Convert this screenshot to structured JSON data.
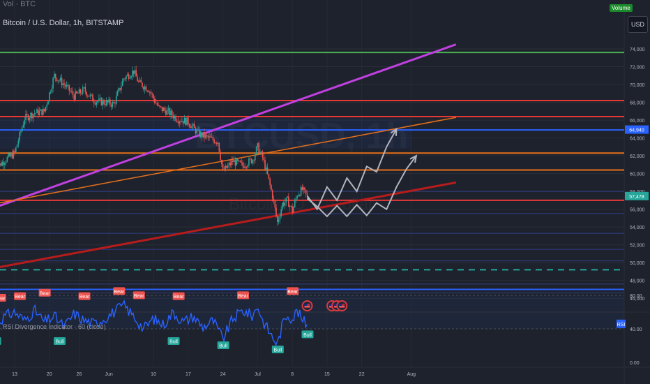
{
  "header": {
    "volume_title": "Vol · BTC",
    "main_title": "Bitcoin / U.S. Dollar, 1h, BITSTAMP",
    "volume_badge": "Volume",
    "currency": "USD"
  },
  "rsi_panel": {
    "title": "RSI Divergence Indicator · 60 (close)",
    "badge": "RSI",
    "ticks": [
      "80.00",
      "40.00",
      "0.00"
    ]
  },
  "colors": {
    "background": "#1e222d",
    "grid": "#2a2e39",
    "candle_up": "#26a69a",
    "candle_down": "#ef5350",
    "rsi_line": "#2962ff",
    "resistance_red": "#e53935",
    "support_blue": "#2962ff",
    "trend_purple": "#c040e0",
    "trend_orange": "#e8701a",
    "trend_darkred": "#b71c1c",
    "level_green": "#4caf50",
    "dashed_teal": "#26a69a",
    "projection": "#b2b5be"
  },
  "chart_data": {
    "type": "candlestick",
    "symbol": "Bitcoin / U.S. Dollar, 1h, BITSTAMP",
    "x_tick_labels": [
      "13",
      "20",
      "26",
      "Jun",
      "10",
      "17",
      "24",
      "Jul",
      "8",
      "15",
      "22",
      "Aug"
    ],
    "y_tick_labels": [
      "46,000",
      "48,000",
      "50,000",
      "52,000",
      "54,000",
      "56,000",
      "58,000",
      "60,000",
      "62,000",
      "64,000",
      "66,000",
      "68,000",
      "70,000",
      "72,000",
      "74,000"
    ],
    "ylim": [
      45000,
      75500
    ],
    "price_labels": [
      {
        "value": 64940,
        "text": "64,940",
        "color": "#2962ff"
      },
      {
        "value": 57478,
        "text": "57,478",
        "color": "#26a69a"
      }
    ],
    "price_series": [
      [
        "May 9",
        60500
      ],
      [
        "May 11",
        61500
      ],
      [
        "May 13",
        62300
      ],
      [
        "May 15",
        66200
      ],
      [
        "May 17",
        66800
      ],
      [
        "May 19",
        67000
      ],
      [
        "May 21",
        71000
      ],
      [
        "May 23",
        70000
      ],
      [
        "May 25",
        68700
      ],
      [
        "May 27",
        69400
      ],
      [
        "May 29",
        68200
      ],
      [
        "May 31",
        68000
      ],
      [
        "Jun 2",
        67800
      ],
      [
        "Jun 4",
        70700
      ],
      [
        "Jun 6",
        71500
      ],
      [
        "Jun 7",
        70200
      ],
      [
        "Jun 9",
        69500
      ],
      [
        "Jun 11",
        67400
      ],
      [
        "Jun 13",
        66900
      ],
      [
        "Jun 15",
        66100
      ],
      [
        "Jun 17",
        65800
      ],
      [
        "Jun 19",
        64500
      ],
      [
        "Jun 21",
        64000
      ],
      [
        "Jun 23",
        63600
      ],
      [
        "Jun 24",
        60200
      ],
      [
        "Jun 26",
        61400
      ],
      [
        "Jun 28",
        60900
      ],
      [
        "Jun 30",
        61600
      ],
      [
        "Jul 1",
        63000
      ],
      [
        "Jul 2",
        61800
      ],
      [
        "Jul 3",
        59800
      ],
      [
        "Jul 4",
        57500
      ],
      [
        "Jul 5",
        54500
      ],
      [
        "Jul 6",
        56600
      ],
      [
        "Jul 7",
        57000
      ],
      [
        "Jul 8",
        55800
      ],
      [
        "Jul 9",
        57700
      ],
      [
        "Jul 10",
        58200
      ],
      [
        "Jul 11",
        57400
      ]
    ],
    "horizontal_levels": [
      {
        "value": 73600,
        "color": "#4caf50",
        "style": "solid"
      },
      {
        "value": 68200,
        "color": "#e53935",
        "style": "solid"
      },
      {
        "value": 66400,
        "color": "#e53935",
        "style": "solid"
      },
      {
        "value": 64900,
        "color": "#2962ff",
        "style": "solid"
      },
      {
        "value": 62300,
        "color": "#e8701a",
        "style": "solid"
      },
      {
        "value": 60400,
        "color": "#e8701a",
        "style": "solid"
      },
      {
        "value": 57000,
        "color": "#e53935",
        "style": "solid"
      },
      {
        "value": 49200,
        "color": "#26a69a",
        "style": "dashed"
      },
      {
        "value": 47000,
        "color": "#2962ff",
        "style": "solid"
      }
    ],
    "trendlines": [
      {
        "from": [
          "May 8",
          56000
        ],
        "to": [
          "Aug 10",
          74500
        ],
        "color": "#c040e0"
      },
      {
        "from": [
          "May 8",
          56500
        ],
        "to": [
          "Aug 10",
          66300
        ],
        "color": "#e8701a"
      },
      {
        "from": [
          "May 8",
          49300
        ],
        "to": [
          "Aug 10",
          59000
        ],
        "color": "#b71c1c"
      }
    ],
    "projections": [
      {
        "points": [
          [
            "Jul 11",
            57500
          ],
          [
            "Jul 13",
            56000
          ],
          [
            "Jul 15",
            58500
          ],
          [
            "Jul 17",
            57000
          ],
          [
            "Jul 19",
            59500
          ],
          [
            "Jul 21",
            58000
          ],
          [
            "Jul 23",
            60800
          ],
          [
            "Jul 25",
            60200
          ],
          [
            "Jul 27",
            63000
          ],
          [
            "Jul 29",
            65000
          ]
        ]
      },
      {
        "points": [
          [
            "Jul 11",
            57200
          ],
          [
            "Jul 13",
            56300
          ],
          [
            "Jul 15",
            55200
          ],
          [
            "Jul 17",
            56400
          ],
          [
            "Jul 19",
            55200
          ],
          [
            "Jul 21",
            56500
          ],
          [
            "Jul 23",
            55300
          ],
          [
            "Jul 25",
            56700
          ],
          [
            "Jul 27",
            56000
          ],
          [
            "Jul 29",
            58500
          ],
          [
            "Jul 31",
            60500
          ],
          [
            "Aug 2",
            62000
          ]
        ]
      }
    ],
    "rsi": {
      "ylim": [
        0,
        100
      ],
      "levels": [
        80,
        40
      ],
      "series": [
        [
          "May 9",
          45
        ],
        [
          "May 11",
          55
        ],
        [
          "May 13",
          60
        ],
        [
          "May 15",
          50
        ],
        [
          "May 17",
          62
        ],
        [
          "May 19",
          48
        ],
        [
          "May 21",
          55
        ],
        [
          "May 23",
          42
        ],
        [
          "May 25",
          58
        ],
        [
          "May 27",
          50
        ],
        [
          "May 29",
          46
        ],
        [
          "May 31",
          52
        ],
        [
          "Jun 2",
          60
        ],
        [
          "Jun 4",
          68
        ],
        [
          "Jun 6",
          55
        ],
        [
          "Jun 8",
          40
        ],
        [
          "Jun 10",
          52
        ],
        [
          "Jun 12",
          45
        ],
        [
          "Jun 14",
          60
        ],
        [
          "Jun 16",
          48
        ],
        [
          "Jun 18",
          55
        ],
        [
          "Jun 20",
          42
        ],
        [
          "Jun 22",
          50
        ],
        [
          "Jun 24",
          28
        ],
        [
          "Jun 26",
          52
        ],
        [
          "Jun 28",
          62
        ],
        [
          "Jun 30",
          55
        ],
        [
          "Jul 1",
          68
        ],
        [
          "Jul 2",
          50
        ],
        [
          "Jul 4",
          30
        ],
        [
          "Jul 5",
          22
        ],
        [
          "Jul 6",
          45
        ],
        [
          "Jul 7",
          58
        ],
        [
          "Jul 8",
          52
        ],
        [
          "Jul 9",
          62
        ],
        [
          "Jul 10",
          50
        ],
        [
          "Jul 11",
          46
        ]
      ],
      "signals": [
        {
          "label": "Bear",
          "date": "May 10",
          "value": 70
        },
        {
          "label": "Bear",
          "date": "May 14",
          "value": 72
        },
        {
          "label": "Bear",
          "date": "May 19",
          "value": 76
        },
        {
          "label": "Bear",
          "date": "May 27",
          "value": 72
        },
        {
          "label": "Bear",
          "date": "Jun 3",
          "value": 78
        },
        {
          "label": "Bear",
          "date": "Jun 7",
          "value": 73
        },
        {
          "label": "Bear",
          "date": "Jun 15",
          "value": 72
        },
        {
          "label": "Bear",
          "date": "Jun 28",
          "value": 73
        },
        {
          "label": "Bear",
          "date": "Jul 8",
          "value": 78
        },
        {
          "label": "Bull",
          "date": "May 9",
          "value": 30
        },
        {
          "label": "Bull",
          "date": "May 22",
          "value": 30
        },
        {
          "label": "Bull",
          "date": "Jun 14",
          "value": 30
        },
        {
          "label": "Bull",
          "date": "Jun 24",
          "value": 25
        },
        {
          "label": "Bull",
          "date": "Jul 5",
          "value": 20
        },
        {
          "label": "Bull",
          "date": "Jul 11",
          "value": 38
        }
      ]
    },
    "event_markers": [
      {
        "date": "Jul 11"
      },
      {
        "date": "Jul 16"
      },
      {
        "date": "Jul 17"
      },
      {
        "date": "Jul 18"
      }
    ]
  }
}
